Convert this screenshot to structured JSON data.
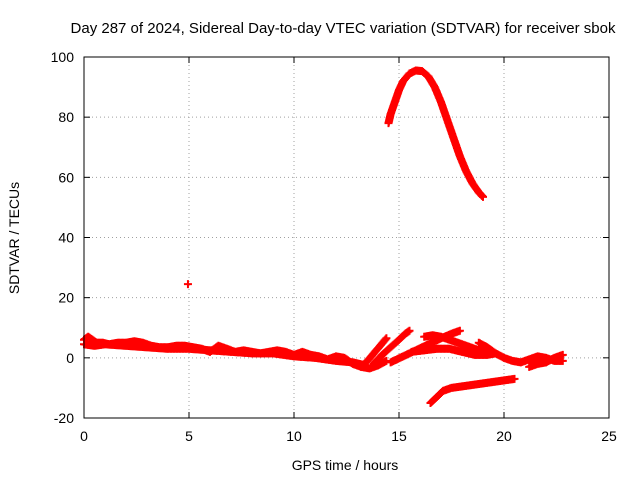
{
  "chart_data": {
    "type": "scatter",
    "title": "Day 287 of 2024, Sidereal Day-to-day VTEC variation (SDTVAR) for receiver sbok",
    "xlabel": "GPS time / hours",
    "ylabel": "SDTVAR / TECUs",
    "xlim": [
      0,
      25
    ],
    "ylim": [
      -20,
      100
    ],
    "xticks": [
      "0",
      "5",
      "10",
      "15",
      "20",
      "25"
    ],
    "yticks": [
      "-20",
      "0",
      "20",
      "40",
      "60",
      "80",
      "100"
    ],
    "grid": true,
    "marker": "+",
    "series": [
      {
        "name": "high-arc-pass",
        "points": [
          [
            14.5,
            78
          ],
          [
            14.6,
            81
          ],
          [
            14.8,
            85
          ],
          [
            15.0,
            89
          ],
          [
            15.2,
            92
          ],
          [
            15.5,
            94.5
          ],
          [
            15.8,
            95.5
          ],
          [
            16.1,
            95.3
          ],
          [
            16.4,
            93.5
          ],
          [
            16.7,
            90
          ],
          [
            17.0,
            85
          ],
          [
            17.3,
            79
          ],
          [
            17.6,
            73
          ],
          [
            17.9,
            67
          ],
          [
            18.2,
            62
          ],
          [
            18.5,
            58
          ],
          [
            18.8,
            55
          ],
          [
            19.0,
            53.5
          ]
        ]
      },
      {
        "name": "isolated-point",
        "points": [
          [
            4.95,
            24.5
          ]
        ]
      },
      {
        "name": "baseline-track",
        "points": [
          [
            0.0,
            6
          ],
          [
            0.2,
            7
          ],
          [
            0.4,
            6
          ],
          [
            0.6,
            5
          ],
          [
            0.9,
            5
          ],
          [
            1.2,
            4.5
          ],
          [
            1.6,
            5
          ],
          [
            2.0,
            5
          ],
          [
            2.4,
            5.5
          ],
          [
            2.8,
            5
          ],
          [
            3.2,
            4
          ],
          [
            3.6,
            3.5
          ],
          [
            4.0,
            3.5
          ],
          [
            4.4,
            4
          ],
          [
            4.8,
            4
          ],
          [
            5.2,
            3.5
          ],
          [
            5.6,
            3
          ],
          [
            6.0,
            2
          ],
          [
            6.4,
            4
          ],
          [
            6.8,
            3
          ],
          [
            7.2,
            2
          ],
          [
            7.6,
            2.5
          ],
          [
            8.0,
            2
          ],
          [
            8.4,
            1.5
          ],
          [
            8.8,
            2
          ],
          [
            9.2,
            2.5
          ],
          [
            9.6,
            2
          ],
          [
            10.0,
            1
          ],
          [
            10.4,
            2
          ],
          [
            10.8,
            1
          ],
          [
            11.2,
            0.5
          ],
          [
            11.6,
            -0.5
          ],
          [
            12.0,
            0.5
          ],
          [
            12.4,
            0
          ],
          [
            12.8,
            -2
          ],
          [
            13.2,
            -3
          ],
          [
            13.6,
            -3.5
          ],
          [
            14.0,
            -2.5
          ],
          [
            14.4,
            -1
          ]
        ]
      },
      {
        "name": "baseline-track-2",
        "points": [
          [
            0.0,
            4.5
          ],
          [
            0.5,
            4
          ],
          [
            1.0,
            4.5
          ],
          [
            2.0,
            4
          ],
          [
            3.0,
            3.5
          ],
          [
            4.0,
            3
          ],
          [
            5.0,
            3
          ],
          [
            6.0,
            2.5
          ],
          [
            7.0,
            2
          ],
          [
            8.0,
            1.5
          ],
          [
            9.0,
            1.5
          ],
          [
            10.0,
            0.5
          ],
          [
            11.0,
            0
          ],
          [
            12.0,
            -1
          ],
          [
            12.8,
            -1.5
          ],
          [
            13.4,
            -2.5
          ]
        ]
      },
      {
        "name": "rising-track-1",
        "points": [
          [
            13.2,
            -3
          ],
          [
            13.5,
            -1
          ],
          [
            13.8,
            1.5
          ],
          [
            14.1,
            4
          ],
          [
            14.4,
            6.5
          ]
        ]
      },
      {
        "name": "rising-track-2",
        "points": [
          [
            13.8,
            -2
          ],
          [
            14.2,
            1
          ],
          [
            14.6,
            3.5
          ],
          [
            15.0,
            6
          ],
          [
            15.3,
            8
          ],
          [
            15.5,
            9
          ]
        ]
      },
      {
        "name": "rising-track-3",
        "points": [
          [
            14.6,
            -1.5
          ],
          [
            15.2,
            0.5
          ],
          [
            15.8,
            2.5
          ],
          [
            16.4,
            4.5
          ],
          [
            17.0,
            6.5
          ],
          [
            17.5,
            8
          ],
          [
            17.9,
            9
          ]
        ]
      },
      {
        "name": "mid-track-1",
        "points": [
          [
            16.2,
            7
          ],
          [
            16.6,
            7.5
          ],
          [
            17.0,
            7
          ],
          [
            17.4,
            6
          ],
          [
            17.8,
            5
          ],
          [
            18.2,
            4
          ],
          [
            18.6,
            3
          ],
          [
            19.0,
            2
          ],
          [
            19.4,
            1.5
          ]
        ]
      },
      {
        "name": "mid-track-2",
        "points": [
          [
            15.6,
            2
          ],
          [
            16.2,
            2.5
          ],
          [
            16.8,
            3
          ],
          [
            17.4,
            3
          ],
          [
            18.0,
            2
          ],
          [
            18.6,
            1
          ],
          [
            19.2,
            1
          ],
          [
            19.6,
            1.5
          ]
        ]
      },
      {
        "name": "late-track",
        "points": [
          [
            18.8,
            5
          ],
          [
            19.2,
            3.5
          ],
          [
            19.6,
            1.5
          ],
          [
            20.0,
            0
          ],
          [
            20.4,
            -1
          ],
          [
            20.8,
            -1.5
          ],
          [
            21.2,
            -0.5
          ],
          [
            21.6,
            0.5
          ],
          [
            22.0,
            0
          ],
          [
            22.4,
            -1
          ],
          [
            22.8,
            -1
          ]
        ]
      },
      {
        "name": "late-track-2",
        "points": [
          [
            21.2,
            -3
          ],
          [
            21.6,
            -2
          ],
          [
            22.0,
            -1.5
          ],
          [
            22.4,
            0
          ],
          [
            22.8,
            1
          ]
        ]
      },
      {
        "name": "negative-track",
        "points": [
          [
            16.5,
            -15
          ],
          [
            16.8,
            -13
          ],
          [
            17.1,
            -11
          ],
          [
            17.5,
            -10
          ],
          [
            18.0,
            -9.5
          ],
          [
            18.5,
            -9
          ],
          [
            19.0,
            -8.5
          ],
          [
            19.5,
            -8
          ],
          [
            20.0,
            -7.5
          ],
          [
            20.5,
            -7
          ]
        ]
      }
    ]
  },
  "colors": {
    "series": "#ff0000",
    "grid": "#a0a0a0",
    "axis": "#000000"
  }
}
